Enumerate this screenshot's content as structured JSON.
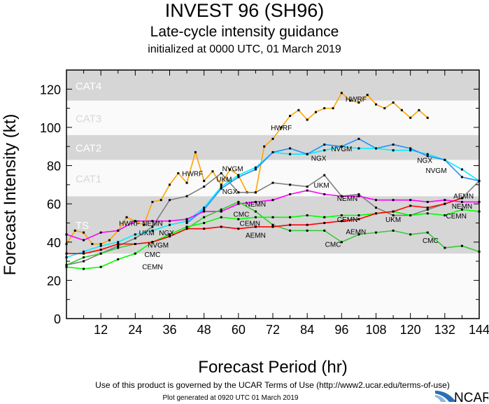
{
  "header": {
    "title": "INVEST 96 (SH96)",
    "subtitle": "Late-cycle intensity guidance",
    "initialized": "initialized at 0000 UTC, 01 March 2019"
  },
  "footer": {
    "terms": "Use of this product is governed by the UCAR Terms of Use (http://www2.ucar.edu/terms-of-use)",
    "generated": "Plot generated at 0920 UTC   01 March 2019",
    "logo_text": "NCAR"
  },
  "chart_data": {
    "type": "line",
    "xlabel": "Forecast Period (hr)",
    "ylabel": "Forecast Intensity (kt)",
    "xlim": [
      0,
      144
    ],
    "ylim": [
      0,
      130
    ],
    "xticks": [
      12,
      24,
      36,
      48,
      60,
      72,
      84,
      96,
      108,
      120,
      132,
      144
    ],
    "yticks": [
      0,
      20,
      40,
      60,
      80,
      100,
      120
    ],
    "grid": false,
    "bands": [
      {
        "label": "TS",
        "from": 34,
        "to": 64,
        "fill": "#d6d6d6",
        "text_color": "#ffffff"
      },
      {
        "label": "CAT1",
        "from": 64,
        "to": 83,
        "fill": "#fafafa",
        "text_color": "#d8d8d8"
      },
      {
        "label": "CAT2",
        "from": 83,
        "to": 96,
        "fill": "#d6d6d6",
        "text_color": "#ffffff"
      },
      {
        "label": "CAT3",
        "from": 96,
        "to": 114,
        "fill": "#fafafa",
        "text_color": "#d8d8d8"
      },
      {
        "label": "CAT4",
        "from": 114,
        "to": 130,
        "fill": "#d6d6d6",
        "text_color": "#ffffff"
      }
    ],
    "below_band_fill": "#fafafa",
    "series": [
      {
        "name": "HWRF",
        "color": "#ffa500",
        "x": [
          0,
          3,
          6,
          9,
          12,
          15,
          18,
          21,
          24,
          27,
          30,
          33,
          36,
          39,
          42,
          45,
          48,
          51,
          54,
          57,
          60,
          63,
          66,
          69,
          72,
          75,
          78,
          81,
          84,
          87,
          90,
          93,
          96,
          99,
          102,
          105,
          108,
          111,
          114,
          117,
          120,
          123,
          126
        ],
        "y": [
          39,
          46,
          45,
          39,
          39,
          41,
          46,
          53,
          51,
          49,
          61,
          62,
          70,
          76,
          71,
          87,
          72,
          77,
          70,
          78,
          75,
          66,
          66,
          90,
          94,
          100,
          106,
          109,
          104,
          108,
          110,
          110,
          118,
          114,
          113,
          117,
          112,
          110,
          113,
          109,
          105,
          109,
          105
        ],
        "labels": [
          [
            22,
            50
          ],
          [
            44,
            76
          ],
          [
            75,
            100
          ],
          [
            101,
            115
          ]
        ]
      },
      {
        "name": "UKM",
        "color": "#808080",
        "x": [
          0,
          6,
          12,
          18,
          24,
          30,
          36,
          42,
          48,
          54,
          60,
          66,
          72,
          78,
          84,
          90,
          96,
          102,
          108,
          114,
          120,
          126,
          132,
          138,
          144
        ],
        "y": [
          28,
          30,
          34,
          38,
          42,
          48,
          62,
          64,
          69,
          76,
          66,
          66,
          71,
          70,
          69,
          75,
          64,
          65,
          58,
          54,
          54,
          57,
          60,
          63,
          72
        ],
        "labels": [
          [
            28,
            45
          ],
          [
            55,
            73
          ],
          [
            89,
            70
          ],
          [
            114,
            52
          ]
        ]
      },
      {
        "name": "NGX",
        "color": "#00eeff",
        "x": [
          0,
          6,
          12,
          18,
          24,
          30,
          36,
          42,
          48,
          54,
          60,
          66,
          72,
          78,
          84,
          90,
          96,
          102,
          108,
          114,
          120,
          126,
          132,
          138,
          144
        ],
        "y": [
          32,
          35,
          38,
          40,
          44,
          46,
          49,
          51,
          58,
          69,
          75,
          79,
          87,
          86,
          86,
          88,
          90,
          89,
          89,
          88,
          88,
          86,
          83,
          78,
          72
        ],
        "labels": [
          [
            32,
            45
          ],
          [
            57,
            71
          ],
          [
            88,
            84
          ],
          [
            125,
            83
          ]
        ]
      },
      {
        "name": "NVGM",
        "color": "#1e90ff",
        "x": [
          42,
          48,
          54,
          60,
          66,
          72,
          78,
          84,
          90,
          96,
          102,
          108,
          114,
          120,
          126,
          132,
          138,
          144
        ],
        "y": [
          50,
          57,
          68,
          74,
          78,
          87,
          89,
          86,
          91,
          90,
          94,
          89,
          91,
          89,
          85,
          83,
          74,
          72
        ],
        "labels": [
          [
            32,
            43
          ],
          [
            58,
            72
          ],
          [
            96,
            89
          ],
          [
            129,
            82
          ]
        ]
      },
      {
        "name": "NEMN",
        "color": "#ff00ff",
        "x": [
          0,
          6,
          12,
          18,
          24,
          30,
          36,
          42,
          48,
          54,
          60,
          66,
          72,
          78,
          84,
          90,
          96,
          102,
          108,
          114,
          120,
          126,
          132,
          138,
          144
        ],
        "y": [
          44,
          41,
          45,
          46,
          51,
          51,
          51,
          52,
          56,
          56,
          60,
          61,
          62,
          65,
          67,
          65,
          64,
          64,
          62,
          62,
          62,
          61,
          62,
          61,
          61
        ],
        "labels": [
          [
            30,
            50
          ],
          [
            66,
            60
          ],
          [
            98,
            63
          ],
          [
            138,
            59
          ]
        ]
      },
      {
        "name": "CMC",
        "color": "#32cd32",
        "x": [
          0,
          6,
          12,
          18,
          24,
          30,
          36,
          42,
          48,
          54,
          60,
          66,
          72,
          78,
          84,
          90,
          96,
          102,
          108,
          114,
          120,
          126,
          132,
          138,
          144
        ],
        "y": [
          28,
          32,
          34,
          37,
          39,
          40,
          43,
          47,
          53,
          57,
          61,
          56,
          49,
          46,
          46,
          46,
          40,
          44,
          45,
          46,
          44,
          45,
          37,
          38,
          35
        ],
        "labels": [
          [
            30,
            38
          ],
          [
            61,
            57
          ],
          [
            93,
            39
          ],
          [
            127,
            41
          ]
        ]
      },
      {
        "name": "CEMN",
        "color": "#00ff00",
        "x": [
          0,
          6,
          12,
          18,
          24,
          30,
          36,
          42,
          48,
          54,
          60,
          66,
          72,
          78,
          84,
          90,
          96,
          102,
          108,
          114,
          120,
          126,
          132,
          138,
          144
        ],
        "y": [
          27,
          26,
          27,
          31,
          34,
          40,
          44,
          48,
          50,
          53,
          52,
          53,
          53,
          53,
          54,
          53,
          54,
          54,
          55,
          56,
          54,
          55,
          54,
          57,
          56
        ],
        "labels": [
          [
            30,
            36
          ],
          [
            64,
            50
          ],
          [
            98,
            52
          ],
          [
            136,
            56
          ]
        ]
      },
      {
        "name": "AEMN",
        "color": "#ff0000",
        "x": [
          0,
          6,
          12,
          18,
          24,
          30,
          36,
          42,
          48,
          54,
          60,
          66,
          72,
          78,
          84,
          90,
          96,
          102,
          108,
          114,
          120,
          126,
          132,
          138
        ],
        "y": [
          34,
          34,
          36,
          39,
          39,
          40,
          43,
          47,
          47,
          48,
          47,
          48,
          48,
          49,
          49,
          50,
          51,
          52,
          55,
          56,
          59,
          58,
          60,
          63
        ],
        "labels": [
          [
            66,
            46
          ],
          [
            101,
            50
          ],
          [
            140,
            62
          ]
        ]
      }
    ]
  }
}
